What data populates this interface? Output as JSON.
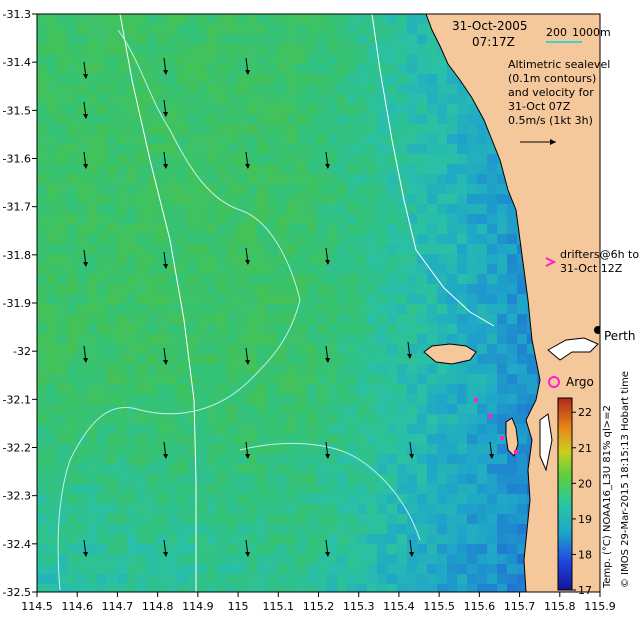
{
  "chart_data": {
    "type": "heatmap",
    "date_text": "31-Oct-2005",
    "time_text": "07:17Z",
    "depth_contour_labels": [
      "200",
      "1000m"
    ],
    "altimetry_text": [
      "Altimetric sealevel",
      "(0.1m contours)",
      "and velocity for",
      "31-Oct 07Z"
    ],
    "velocity_scale_text": "0.5m/s (1kt 3h)",
    "drifters_text": [
      "drifters@6h to",
      "31-Oct 12Z"
    ],
    "argo_text": "Argo",
    "city_label": "Perth",
    "colorbar_label": "Temp. (°C) NOAA16_L3U 81% ql>=2",
    "colorbar_ticks": [
      17,
      18,
      19,
      20,
      21,
      22
    ],
    "colorbar_range": [
      17,
      22.4
    ],
    "credit_text": "© IMOS 29-Mar-2015 18:15:13 Hobart time",
    "x_ticks": [
      "114.5",
      "114.6",
      "114.7",
      "114.8",
      "114.9",
      "115",
      "115.1",
      "115.2",
      "115.3",
      "115.4",
      "115.5",
      "115.6",
      "115.7",
      "115.8",
      "115.9"
    ],
    "y_ticks": [
      "-31.3",
      "-31.4",
      "-31.5",
      "-31.6",
      "-31.7",
      "-31.8",
      "-31.9",
      "-32",
      "-32.1",
      "-32.2",
      "-32.3",
      "-32.4",
      "-32.5"
    ],
    "xlim": [
      114.5,
      115.9
    ],
    "ylim": [
      -32.5,
      -31.3
    ],
    "colors": {
      "land": "#f5c89b",
      "ocean_cool": "#1a2fc8",
      "ocean_mid": "#1fa6c9",
      "ocean_warm": "#3dbf5a",
      "contour": "#bff2ee",
      "drifter": "#ff22cc"
    }
  }
}
